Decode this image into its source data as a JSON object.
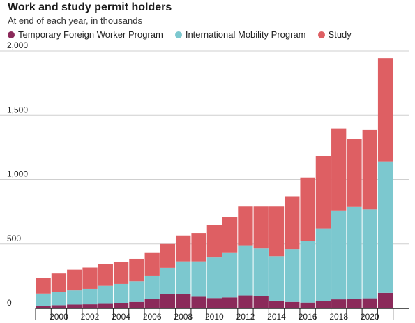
{
  "title": "Work and study permit holders",
  "subtitle": "At end of each year, in thousands",
  "colors": {
    "tfwp": "#8b2a5a",
    "imp": "#7cc8cf",
    "study": "#de5f63",
    "grid": "#cfcfcf",
    "axis": "#222222"
  },
  "chart_data": {
    "type": "bar",
    "stacked": true,
    "title": "Work and study permit holders",
    "subtitle": "At end of each year, in thousands",
    "xlabel": "",
    "ylabel": "",
    "ylim": [
      0,
      2000
    ],
    "yticks": [
      0,
      500,
      1000,
      1500,
      2000
    ],
    "ytick_labels": [
      "0",
      "500",
      "1,000",
      "1,500",
      "2,000"
    ],
    "grid": true,
    "legend_position": "top",
    "x": [
      1999,
      2000,
      2001,
      2002,
      2003,
      2004,
      2005,
      2006,
      2007,
      2008,
      2009,
      2010,
      2011,
      2012,
      2013,
      2014,
      2015,
      2016,
      2017,
      2018,
      2019,
      2020,
      2021,
      2022
    ],
    "xtick_labels": [
      "2000",
      "2002",
      "2004",
      "2006",
      "2008",
      "2010",
      "2012",
      "2014",
      "2016",
      "2018",
      "2020"
    ],
    "xtick_values": [
      2000,
      2002,
      2004,
      2006,
      2008,
      2010,
      2012,
      2014,
      2016,
      2018,
      2020
    ],
    "series": [
      {
        "name": "Temporary Foreign Worker Program",
        "color": "#8b2a5a",
        "values": [
          20,
          25,
          30,
          32,
          35,
          40,
          50,
          75,
          110,
          110,
          90,
          80,
          85,
          100,
          95,
          60,
          50,
          45,
          55,
          70,
          72,
          78,
          120,
          0
        ]
      },
      {
        "name": "International Mobility Program",
        "color": "#7cc8cf",
        "values": [
          95,
          100,
          110,
          120,
          140,
          150,
          160,
          180,
          205,
          255,
          275,
          315,
          350,
          390,
          370,
          345,
          410,
          480,
          565,
          690,
          715,
          690,
          1020,
          0
        ]
      },
      {
        "name": "Study",
        "color": "#de5f63",
        "values": [
          120,
          145,
          160,
          165,
          170,
          170,
          175,
          180,
          185,
          200,
          220,
          250,
          275,
          300,
          325,
          385,
          410,
          490,
          565,
          635,
          530,
          620,
          805,
          0
        ]
      }
    ]
  }
}
